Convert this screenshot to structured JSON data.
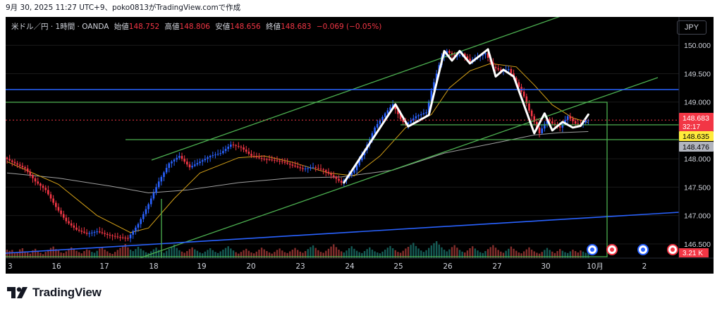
{
  "caption": "9月 30, 2025 11:27 UTC+9、poko0813がTradingView.comで作成",
  "legend": {
    "symbol": "米ドル／円 · 1時間 · OANDA",
    "open_label": "始値",
    "open": "148.752",
    "high_label": "高値",
    "high": "148.806",
    "low_label": "安値",
    "low": "148.656",
    "close_label": "終値",
    "close": "148.683",
    "change": "−0.069 (−0.05%)"
  },
  "currency_button": "JPY",
  "brand": "TradingView",
  "colors": {
    "background": "#000000",
    "up": "#2962ff",
    "down": "#f23645",
    "swing": "#ffffff",
    "channel": "#4caf50",
    "horizontal_blue": "#2962ff",
    "ma_fast": "#d4a017",
    "ma_slow": "#a0a0a0"
  },
  "chart_data": {
    "type": "candlestick",
    "instrument": "USD/JPY 1h OANDA",
    "x_ticks": [
      "3",
      "16",
      "17",
      "18",
      "19",
      "20",
      "23",
      "24",
      "25",
      "26",
      "27",
      "30",
      "10月",
      "2"
    ],
    "y_ticks": [
      "150.000",
      "149.500",
      "149.000",
      "148.000",
      "147.500",
      "147.000",
      "146.500"
    ],
    "ylim": [
      146.25,
      150.5
    ],
    "price_labels": [
      {
        "label": "148.683",
        "sub": "32:17",
        "color": "#f23645",
        "text_color": "#ffffff"
      },
      {
        "label": "148.635",
        "color": "#ffeb3b",
        "text_color": "#000000"
      },
      {
        "label": "148.476",
        "color": "#b2b5be",
        "text_color": "#000000"
      }
    ],
    "volume_label": "3.21 K",
    "price_path": [
      [
        0,
        148.02
      ],
      [
        4,
        147.92
      ],
      [
        8,
        147.83
      ],
      [
        12,
        147.6
      ],
      [
        16,
        147.45
      ],
      [
        20,
        147.15
      ],
      [
        24,
        146.9
      ],
      [
        28,
        146.75
      ],
      [
        32,
        146.68
      ],
      [
        36,
        146.72
      ],
      [
        40,
        146.66
      ],
      [
        44,
        146.62
      ],
      [
        48,
        146.6
      ],
      [
        52,
        146.85
      ],
      [
        56,
        147.2
      ],
      [
        60,
        147.6
      ],
      [
        64,
        147.92
      ],
      [
        68,
        148.05
      ],
      [
        72,
        147.85
      ],
      [
        76,
        147.95
      ],
      [
        80,
        148.05
      ],
      [
        84,
        148.1
      ],
      [
        88,
        148.25
      ],
      [
        92,
        148.2
      ],
      [
        96,
        148.05
      ],
      [
        100,
        148.0
      ],
      [
        104,
        147.98
      ],
      [
        108,
        147.95
      ],
      [
        112,
        147.88
      ],
      [
        116,
        147.82
      ],
      [
        120,
        147.85
      ],
      [
        124,
        147.8
      ],
      [
        128,
        147.68
      ],
      [
        131,
        147.58
      ],
      [
        136,
        147.8
      ],
      [
        140,
        148.15
      ],
      [
        144,
        148.55
      ],
      [
        148,
        148.8
      ],
      [
        151,
        148.96
      ],
      [
        154,
        148.7
      ],
      [
        156,
        148.6
      ],
      [
        160,
        148.75
      ],
      [
        164,
        148.82
      ],
      [
        166,
        149.2
      ],
      [
        168,
        149.5
      ],
      [
        170,
        149.8
      ],
      [
        172,
        149.9
      ],
      [
        175,
        149.8
      ],
      [
        178,
        149.85
      ],
      [
        181,
        149.72
      ],
      [
        184,
        149.8
      ],
      [
        187,
        149.86
      ],
      [
        190,
        149.62
      ],
      [
        193,
        149.55
      ],
      [
        196,
        149.58
      ],
      [
        199,
        149.35
      ],
      [
        202,
        149.1
      ],
      [
        204,
        148.85
      ],
      [
        206,
        148.65
      ],
      [
        208,
        148.45
      ],
      [
        211,
        148.7
      ],
      [
        213,
        148.62
      ],
      [
        216,
        148.55
      ],
      [
        219,
        148.75
      ],
      [
        222,
        148.62
      ],
      [
        224,
        148.6
      ],
      [
        226,
        148.68
      ]
    ],
    "swing_path": [
      [
        131,
        147.58
      ],
      [
        151,
        148.96
      ],
      [
        156,
        148.57
      ],
      [
        164,
        148.77
      ],
      [
        170,
        149.9
      ],
      [
        173,
        149.73
      ],
      [
        176,
        149.9
      ],
      [
        180,
        149.68
      ],
      [
        187,
        149.93
      ],
      [
        190,
        149.45
      ],
      [
        193,
        149.57
      ],
      [
        197,
        149.45
      ],
      [
        201,
        148.95
      ],
      [
        205,
        148.45
      ],
      [
        209,
        148.8
      ],
      [
        212,
        148.5
      ],
      [
        216,
        148.65
      ],
      [
        220,
        148.55
      ],
      [
        223,
        148.58
      ],
      [
        226,
        148.78
      ]
    ],
    "ma_fast": [
      [
        0,
        147.95
      ],
      [
        20,
        147.55
      ],
      [
        35,
        147.0
      ],
      [
        48,
        146.7
      ],
      [
        55,
        146.78
      ],
      [
        65,
        147.3
      ],
      [
        75,
        147.75
      ],
      [
        90,
        148.02
      ],
      [
        100,
        148.05
      ],
      [
        110,
        147.95
      ],
      [
        125,
        147.75
      ],
      [
        135,
        147.7
      ],
      [
        145,
        148.05
      ],
      [
        155,
        148.55
      ],
      [
        165,
        148.78
      ],
      [
        172,
        149.25
      ],
      [
        180,
        149.55
      ],
      [
        188,
        149.68
      ],
      [
        198,
        149.62
      ],
      [
        205,
        149.3
      ],
      [
        212,
        148.95
      ],
      [
        220,
        148.72
      ],
      [
        226,
        148.64
      ]
    ],
    "ma_slow": [
      [
        0,
        147.75
      ],
      [
        20,
        147.66
      ],
      [
        40,
        147.52
      ],
      [
        55,
        147.4
      ],
      [
        70,
        147.45
      ],
      [
        90,
        147.58
      ],
      [
        110,
        147.66
      ],
      [
        130,
        147.68
      ],
      [
        150,
        147.8
      ],
      [
        170,
        148.1
      ],
      [
        190,
        148.28
      ],
      [
        205,
        148.42
      ],
      [
        215,
        148.46
      ],
      [
        226,
        148.48
      ]
    ],
    "volume": [
      3.0,
      2.6,
      2.9,
      1.8,
      2.2,
      3.1,
      3.5,
      2.4,
      2.0,
      1.6,
      2.8,
      3.3,
      2.5,
      1.9,
      1.4,
      2.2,
      2.9,
      3.6,
      4.1,
      3.2,
      2.7,
      2.0,
      1.8,
      2.4,
      3.0,
      3.8,
      3.4,
      2.6,
      2.1,
      1.7,
      2.5,
      3.1,
      2.8,
      2.2,
      1.9,
      2.6,
      3.4,
      3.9,
      3.0,
      2.4,
      1.8,
      1.5,
      2.2,
      2.9,
      3.6,
      4.4,
      5.0,
      3.8,
      3.0,
      2.5,
      3.2,
      4.0,
      3.3,
      2.7,
      2.1,
      1.8,
      2.4,
      3.1,
      3.7,
      2.9,
      2.2,
      1.9,
      2.6,
      3.3,
      4.0,
      4.8,
      3.6,
      2.8,
      2.3,
      1.9,
      2.5,
      3.2,
      3.8,
      3.1,
      2.6,
      2.0,
      1.7,
      2.3,
      2.9,
      3.5,
      2.8,
      2.2,
      1.8,
      2.4,
      3.0,
      3.6,
      4.2,
      3.4,
      2.7,
      2.1,
      1.6,
      2.2,
      2.8,
      3.3,
      2.6,
      2.0,
      1.7,
      2.3,
      3.0,
      3.7,
      3.1,
      2.5,
      2.0,
      1.6,
      2.2,
      2.9,
      3.4,
      2.7,
      2.1,
      1.8,
      2.4,
      3.0,
      3.6,
      2.9,
      2.3,
      1.9,
      2.5,
      3.2,
      3.9,
      4.5,
      3.6,
      2.8,
      2.2,
      1.9,
      2.6,
      3.3,
      4.1,
      4.9,
      3.9,
      3.0,
      2.4,
      2.0,
      2.7,
      3.5,
      4.2,
      3.3,
      2.6,
      2.1,
      1.8,
      2.5,
      3.2,
      3.8,
      3.0,
      2.4,
      2.0,
      1.7,
      2.3,
      3.0,
      3.7,
      4.3,
      3.5,
      2.8,
      2.2,
      1.9,
      2.6,
      3.4,
      4.0,
      4.7,
      5.4,
      4.3,
      3.4,
      2.7,
      2.2,
      2.8,
      3.6,
      4.5,
      5.3,
      6.0,
      4.8,
      3.8,
      3.0,
      2.4,
      3.1,
      3.9,
      4.6,
      3.7,
      2.9,
      2.3,
      2.0,
      2.7,
      3.5,
      4.2,
      3.4,
      2.7,
      2.1,
      1.8,
      2.5,
      3.2,
      3.9,
      4.6,
      3.7,
      2.9,
      2.3,
      1.9,
      2.6,
      3.3,
      4.1,
      3.3,
      2.6,
      2.0,
      1.7,
      2.4,
      3.1,
      3.8,
      3.0,
      2.4,
      1.9,
      1.6,
      2.2,
      2.9,
      3.6,
      2.9,
      2.3,
      1.8,
      2.5,
      3.2,
      2.6,
      2.1,
      1.8,
      2.4,
      3.0,
      2.5,
      2.0,
      2.7,
      2.3,
      1.9,
      2.2
    ]
  }
}
